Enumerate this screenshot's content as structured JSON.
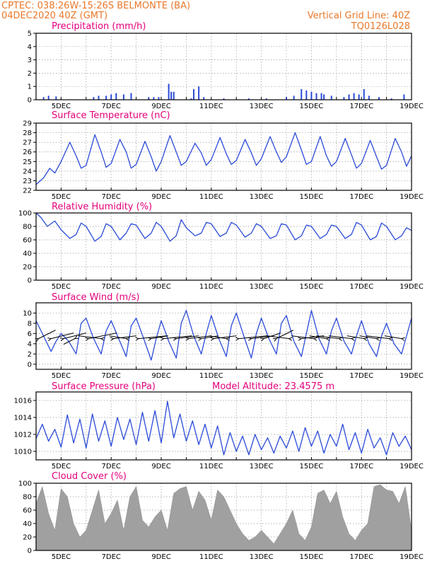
{
  "header": {
    "line1_left": "CPTEC:   038:26W-15:26S   BELMONTE (BA)",
    "line2_left": "04DEC2020 40Z (GMT)",
    "line2_right": "Vertical Grid Line: 40Z",
    "line3_right": "TQ0126L028"
  },
  "x_axis": {
    "start_day": 4,
    "end_day": 19,
    "date_labels": [
      "5DEC",
      "7DEC",
      "9DEC",
      "11DEC",
      "13DEC",
      "15DEC",
      "17DEC",
      "19DEC"
    ]
  },
  "colors": {
    "line": "#2b4bd8",
    "bar": "#a0a0a0",
    "title": "#e4007c",
    "header": "#e8782a"
  },
  "panels": {
    "precip": {
      "title": "Precipitation (mm/h)",
      "ylim": [
        0,
        5
      ],
      "yticks": [
        "0",
        "1",
        "2",
        "3",
        "4",
        "5"
      ]
    },
    "temp": {
      "title": "Surface Temperature (nC)",
      "ylim": [
        22,
        29
      ],
      "yticks": [
        "22",
        "23",
        "24",
        "25",
        "26",
        "27",
        "28",
        "29"
      ]
    },
    "rh": {
      "title": "Relative Humidity (%)",
      "ylim": [
        0,
        100
      ],
      "yticks": [
        "0",
        "20",
        "40",
        "60",
        "80",
        "100"
      ]
    },
    "wind": {
      "title": "Surface Wind (m/s)",
      "ylim": [
        -1,
        12
      ],
      "yticks": [
        "0",
        "2",
        "4",
        "6",
        "8",
        "10"
      ]
    },
    "pres": {
      "title": "Surface Pressure (hPa)",
      "extra_label": "Model Altitude: 23.4575 m",
      "ylim": [
        1009,
        1017
      ],
      "yticks": [
        "1010",
        "1012",
        "1014",
        "1016"
      ]
    },
    "cloud": {
      "title": "Cloud Cover (%)",
      "ylim": [
        0,
        100
      ],
      "yticks": [
        "0",
        "20",
        "40",
        "60",
        "80",
        "100"
      ]
    }
  },
  "chart_data": [
    {
      "type": "bar",
      "title": "Precipitation (mm/h)",
      "ylim": [
        0,
        5
      ],
      "x": [
        4.3,
        4.5,
        4.8,
        6.3,
        6.5,
        6.8,
        7.0,
        7.2,
        7.5,
        7.8,
        8.5,
        8.7,
        8.9,
        9.3,
        9.4,
        9.5,
        10.2,
        10.3,
        10.5,
        10.7,
        11.5,
        12.5,
        13.2,
        14.0,
        14.3,
        14.6,
        14.8,
        15.0,
        15.2,
        15.4,
        15.5,
        15.8,
        16.3,
        16.5,
        16.7,
        16.9,
        17.1,
        17.3,
        17.7,
        18.2,
        18.7
      ],
      "values": [
        0.2,
        0.3,
        0.25,
        0.2,
        0.3,
        0.3,
        0.4,
        0.5,
        0.4,
        0.5,
        0.2,
        0.2,
        0.2,
        1.2,
        0.6,
        0.6,
        0.1,
        0.8,
        1.0,
        0.2,
        0.1,
        0.1,
        0.1,
        0.2,
        0.3,
        0.8,
        0.7,
        0.6,
        0.5,
        0.5,
        0.4,
        0.3,
        0.2,
        0.4,
        0.5,
        0.4,
        0.8,
        0.3,
        0.2,
        0.1,
        0.4
      ]
    },
    {
      "type": "line",
      "title": "Surface Temperature (nC)",
      "ylim": [
        22,
        29
      ],
      "series": [
        {
          "x": [
            4.0,
            4.3,
            4.55,
            4.75,
            5.0,
            5.35,
            5.6,
            5.8,
            6.0,
            6.35,
            6.6,
            6.8,
            7.0,
            7.35,
            7.6,
            7.8,
            8.0,
            8.35,
            8.6,
            8.8,
            9.0,
            9.35,
            9.6,
            9.8,
            10.0,
            10.35,
            10.6,
            10.8,
            11.0,
            11.35,
            11.6,
            11.8,
            12.0,
            12.35,
            12.6,
            12.8,
            13.0,
            13.35,
            13.6,
            13.8,
            14.0,
            14.35,
            14.6,
            14.8,
            15.0,
            15.35,
            15.6,
            15.8,
            16.0,
            16.35,
            16.6,
            16.8,
            17.0,
            17.35,
            17.6,
            17.8,
            18.0,
            18.35,
            18.6,
            18.8,
            19.0
          ],
          "values": [
            22.6,
            23.3,
            24.3,
            23.8,
            25.0,
            27.0,
            25.6,
            24.3,
            24.6,
            27.8,
            26.0,
            24.4,
            24.8,
            27.3,
            26.0,
            24.3,
            24.7,
            27.1,
            25.5,
            24.0,
            25.0,
            27.7,
            26.0,
            24.6,
            25.0,
            26.9,
            25.9,
            24.6,
            25.2,
            27.5,
            25.8,
            24.7,
            25.1,
            27.3,
            25.9,
            24.6,
            25.3,
            27.6,
            26.0,
            24.9,
            25.5,
            28.0,
            26.2,
            24.7,
            25.0,
            27.6,
            25.6,
            24.5,
            25.0,
            27.4,
            25.7,
            24.3,
            24.8,
            27.2,
            25.5,
            24.2,
            24.6,
            27.4,
            26.0,
            24.5,
            25.6
          ]
        }
      ]
    },
    {
      "type": "line",
      "title": "Relative Humidity (%)",
      "ylim": [
        0,
        100
      ],
      "series": [
        {
          "x": [
            4.0,
            4.2,
            4.45,
            4.75,
            5.0,
            5.35,
            5.6,
            5.8,
            6.0,
            6.35,
            6.6,
            6.8,
            7.0,
            7.35,
            7.6,
            7.8,
            8.0,
            8.35,
            8.6,
            8.8,
            9.0,
            9.35,
            9.6,
            9.8,
            10.0,
            10.35,
            10.6,
            10.8,
            11.0,
            11.35,
            11.6,
            11.8,
            12.0,
            12.35,
            12.6,
            12.8,
            13.0,
            13.35,
            13.6,
            13.8,
            14.0,
            14.35,
            14.6,
            14.8,
            15.0,
            15.35,
            15.6,
            15.8,
            16.0,
            16.35,
            16.6,
            16.8,
            17.0,
            17.35,
            17.6,
            17.8,
            18.0,
            18.35,
            18.6,
            18.8,
            19.0
          ],
          "values": [
            100,
            93,
            80,
            88,
            75,
            62,
            68,
            85,
            80,
            58,
            65,
            84,
            80,
            60,
            70,
            84,
            82,
            62,
            70,
            86,
            80,
            58,
            66,
            90,
            78,
            66,
            70,
            86,
            84,
            65,
            70,
            86,
            82,
            64,
            70,
            84,
            80,
            62,
            66,
            84,
            82,
            60,
            66,
            82,
            80,
            62,
            68,
            82,
            80,
            62,
            68,
            86,
            82,
            60,
            65,
            85,
            80,
            60,
            66,
            78,
            74
          ]
        }
      ]
    },
    {
      "type": "line",
      "title": "Surface Wind (m/s)",
      "ylim": [
        -1,
        12
      ],
      "series": [
        {
          "x": [
            4.0,
            4.3,
            4.6,
            4.8,
            5.0,
            5.3,
            5.6,
            5.8,
            6.0,
            6.3,
            6.6,
            6.8,
            7.0,
            7.3,
            7.6,
            7.8,
            8.0,
            8.3,
            8.6,
            8.8,
            9.0,
            9.3,
            9.6,
            9.8,
            10.0,
            10.3,
            10.6,
            10.8,
            11.0,
            11.3,
            11.6,
            11.8,
            12.0,
            12.3,
            12.6,
            12.8,
            13.0,
            13.3,
            13.6,
            13.8,
            14.0,
            14.3,
            14.6,
            14.8,
            15.0,
            15.3,
            15.6,
            15.8,
            16.0,
            16.3,
            16.6,
            16.8,
            17.0,
            17.3,
            17.6,
            17.8,
            18.0,
            18.3,
            18.6,
            18.8,
            19.0
          ],
          "values": [
            8.5,
            5.5,
            2.5,
            4.5,
            6.0,
            4.5,
            2.0,
            8.0,
            9.0,
            5.0,
            2.0,
            6.5,
            8.5,
            5.0,
            1.5,
            7.5,
            9.0,
            5.0,
            0.8,
            5.0,
            8.5,
            4.5,
            1.2,
            8.0,
            10.5,
            5.5,
            2.0,
            6.0,
            9.5,
            5.0,
            1.5,
            7.5,
            10.0,
            5.5,
            1.2,
            6.0,
            9.0,
            5.0,
            2.0,
            8.0,
            9.5,
            4.5,
            1.5,
            6.0,
            10.5,
            5.0,
            2.0,
            6.5,
            9.0,
            4.5,
            2.0,
            5.5,
            8.5,
            4.0,
            1.5,
            5.5,
            8.0,
            4.0,
            2.0,
            5.5,
            9.0
          ]
        }
      ],
      "wind_vectors": {
        "day": [
          4.1,
          4.6,
          5.1,
          5.55,
          6.1,
          6.6,
          7.1,
          7.6,
          8.1,
          8.6,
          9.1,
          9.6,
          10.1,
          10.6,
          11.1,
          11.6,
          12.1,
          12.6,
          13.1,
          13.6,
          14.1,
          14.6,
          15.1,
          15.6,
          16.1,
          16.6,
          17.1,
          17.6,
          18.1,
          18.6
        ],
        "u": [
          3,
          4,
          4,
          -2,
          5,
          -4,
          4,
          -3,
          5,
          3,
          5,
          4,
          4,
          3,
          4,
          -3,
          5,
          4,
          3,
          3,
          -4,
          4,
          -4,
          -3,
          -4,
          -4,
          -3,
          -3,
          -4,
          -3
        ],
        "v": [
          3,
          2,
          2,
          -2,
          2,
          1,
          1,
          1,
          1,
          1,
          1,
          1,
          1,
          1,
          1,
          1,
          1,
          1,
          2,
          3,
          1,
          1,
          1,
          1,
          1,
          1,
          1,
          1,
          1,
          1
        ]
      }
    },
    {
      "type": "line",
      "title": "Surface Pressure (hPa)",
      "ylim": [
        1009,
        1017
      ],
      "series": [
        {
          "x": [
            4.0,
            4.25,
            4.5,
            4.75,
            5.0,
            5.25,
            5.5,
            5.75,
            6.0,
            6.25,
            6.5,
            6.75,
            7.0,
            7.25,
            7.5,
            7.75,
            8.0,
            8.25,
            8.5,
            8.75,
            9.0,
            9.25,
            9.5,
            9.75,
            10.0,
            10.25,
            10.5,
            10.75,
            11.0,
            11.25,
            11.5,
            11.75,
            12.0,
            12.25,
            12.5,
            12.75,
            13.0,
            13.25,
            13.5,
            13.75,
            14.0,
            14.25,
            14.5,
            14.75,
            15.0,
            15.25,
            15.5,
            15.75,
            16.0,
            16.25,
            16.5,
            16.75,
            17.0,
            17.25,
            17.5,
            17.75,
            18.0,
            18.25,
            18.5,
            18.75,
            19.0
          ],
          "values": [
            1011.5,
            1013.2,
            1011.2,
            1012.6,
            1010.5,
            1014.3,
            1011.0,
            1013.8,
            1010.4,
            1014.4,
            1011.2,
            1013.6,
            1010.6,
            1014.0,
            1011.4,
            1013.8,
            1010.8,
            1014.6,
            1011.2,
            1014.8,
            1011.0,
            1015.9,
            1011.6,
            1014.4,
            1011.2,
            1013.6,
            1010.8,
            1013.2,
            1010.4,
            1013.0,
            1009.6,
            1012.2,
            1010.0,
            1011.8,
            1009.6,
            1012.0,
            1010.2,
            1011.6,
            1009.8,
            1011.8,
            1010.4,
            1012.4,
            1010.0,
            1012.8,
            1010.6,
            1012.4,
            1009.8,
            1012.0,
            1010.6,
            1013.2,
            1010.2,
            1012.2,
            1009.8,
            1012.6,
            1010.4,
            1011.6,
            1009.6,
            1012.2,
            1010.6,
            1011.8,
            1010.2
          ]
        }
      ]
    },
    {
      "type": "area",
      "title": "Cloud Cover (%)",
      "ylim": [
        0,
        100
      ],
      "x": [
        4.0,
        4.25,
        4.5,
        4.75,
        5.0,
        5.25,
        5.5,
        5.75,
        6.0,
        6.25,
        6.5,
        6.75,
        7.0,
        7.25,
        7.5,
        7.75,
        8.0,
        8.25,
        8.5,
        8.75,
        9.0,
        9.25,
        9.5,
        9.75,
        10.0,
        10.25,
        10.5,
        10.75,
        11.0,
        11.25,
        11.5,
        11.75,
        12.0,
        12.25,
        12.5,
        12.75,
        13.0,
        13.25,
        13.5,
        13.75,
        14.0,
        14.25,
        14.5,
        14.75,
        15.0,
        15.25,
        15.5,
        15.75,
        16.0,
        16.25,
        16.5,
        16.75,
        17.0,
        17.25,
        17.5,
        17.75,
        18.0,
        18.25,
        18.5,
        18.75,
        19.0
      ],
      "values": [
        70,
        95,
        55,
        30,
        92,
        80,
        40,
        20,
        30,
        60,
        90,
        40,
        55,
        75,
        30,
        80,
        95,
        45,
        35,
        50,
        60,
        30,
        85,
        92,
        95,
        60,
        88,
        75,
        45,
        90,
        80,
        60,
        40,
        25,
        15,
        20,
        30,
        20,
        10,
        25,
        40,
        60,
        25,
        15,
        35,
        85,
        90,
        70,
        88,
        50,
        25,
        15,
        30,
        40,
        95,
        98,
        90,
        88,
        70,
        95,
        30
      ]
    }
  ]
}
